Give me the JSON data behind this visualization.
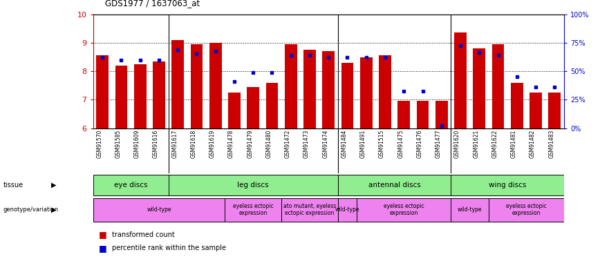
{
  "title": "GDS1977 / 1637063_at",
  "samples": [
    "GSM91570",
    "GSM91585",
    "GSM91609",
    "GSM91616",
    "GSM91617",
    "GSM91618",
    "GSM91619",
    "GSM91478",
    "GSM91479",
    "GSM91480",
    "GSM91472",
    "GSM91473",
    "GSM91474",
    "GSM91484",
    "GSM91491",
    "GSM91515",
    "GSM91475",
    "GSM91476",
    "GSM91477",
    "GSM91620",
    "GSM91621",
    "GSM91622",
    "GSM91481",
    "GSM91482",
    "GSM91483"
  ],
  "red_values": [
    8.55,
    8.2,
    8.25,
    8.35,
    9.1,
    8.95,
    9.0,
    7.25,
    7.45,
    7.6,
    8.95,
    8.75,
    8.7,
    8.3,
    8.5,
    8.55,
    6.95,
    6.95,
    6.95,
    9.35,
    8.8,
    8.95,
    7.6,
    7.25,
    7.25
  ],
  "blue_values": [
    8.5,
    8.4,
    8.4,
    8.4,
    8.75,
    8.6,
    8.7,
    7.65,
    7.95,
    7.95,
    8.55,
    8.55,
    8.5,
    8.5,
    8.5,
    8.5,
    7.3,
    7.3,
    6.1,
    8.9,
    8.65,
    8.55,
    7.8,
    7.45,
    7.45
  ],
  "ymin": 6,
  "ymax": 10,
  "yticks": [
    6,
    7,
    8,
    9,
    10
  ],
  "right_ytick_labels": [
    "0%",
    "25%",
    "50%",
    "75%",
    "100%"
  ],
  "right_ytick_pct": [
    0,
    25,
    50,
    75,
    100
  ],
  "tissue_groups": [
    {
      "label": "eye discs",
      "start": 0,
      "end": 4,
      "color": "#90ee90"
    },
    {
      "label": "leg discs",
      "start": 4,
      "end": 13,
      "color": "#90ee90"
    },
    {
      "label": "antennal discs",
      "start": 13,
      "end": 19,
      "color": "#90ee90"
    },
    {
      "label": "wing discs",
      "start": 19,
      "end": 25,
      "color": "#90ee90"
    }
  ],
  "genotype_groups": [
    {
      "label": "wild-type",
      "start": 0,
      "end": 7,
      "color": "#ee82ee"
    },
    {
      "label": "eyeless ectopic\nexpression",
      "start": 7,
      "end": 10,
      "color": "#ee82ee"
    },
    {
      "label": "ato mutant, eyeless\nectopic expression",
      "start": 10,
      "end": 13,
      "color": "#ee82ee"
    },
    {
      "label": "wild-type",
      "start": 13,
      "end": 14,
      "color": "#ee82ee"
    },
    {
      "label": "eyeless ectopic\nexpression",
      "start": 14,
      "end": 19,
      "color": "#ee82ee"
    },
    {
      "label": "wild-type",
      "start": 19,
      "end": 21,
      "color": "#ee82ee"
    },
    {
      "label": "eyeless ectopic\nexpression",
      "start": 21,
      "end": 25,
      "color": "#ee82ee"
    }
  ],
  "bar_color": "#cc0000",
  "dot_color": "#0000cc",
  "bg_color": "#c8c8c8",
  "plot_bg": "#ffffff",
  "left_axis_color": "#cc0000",
  "right_axis_color": "#0000cc",
  "separator_cols": [
    4,
    13,
    19
  ]
}
